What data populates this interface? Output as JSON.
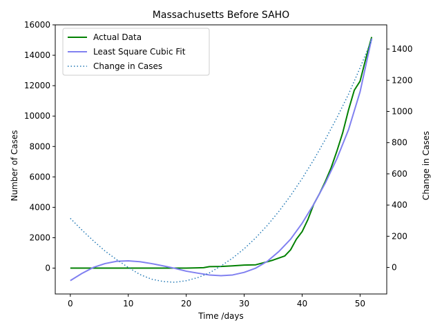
{
  "chart_data": {
    "type": "line",
    "title": "Massachusetts Before SAHO",
    "xlabel": "Time /days",
    "ylabel": "Number of Cases",
    "y2label": "Change in Cases",
    "xlim": [
      -2.6,
      54.6
    ],
    "ylim": [
      -1700,
      16000
    ],
    "y2lim": [
      -170,
      1555
    ],
    "xticks": [
      0,
      10,
      20,
      30,
      40,
      50
    ],
    "yticks": [
      0,
      2000,
      4000,
      6000,
      8000,
      10000,
      12000,
      14000,
      16000
    ],
    "y2ticks": [
      0,
      200,
      400,
      600,
      800,
      1000,
      1200,
      1400
    ],
    "grid": false,
    "legend_position": "top-left",
    "series": [
      {
        "name": "Actual Data",
        "axis": "left",
        "color": "#008000",
        "style": "solid",
        "x": [
          0,
          5,
          10,
          15,
          20,
          22,
          23,
          24,
          26,
          28,
          30,
          32,
          34,
          35,
          37,
          38,
          39,
          40,
          41,
          42,
          43,
          44,
          45,
          46,
          47,
          48,
          49,
          50,
          51,
          52
        ],
        "y": [
          0,
          0,
          0,
          0,
          0,
          20,
          30,
          100,
          110,
          150,
          200,
          220,
          420,
          530,
          800,
          1200,
          1900,
          2400,
          3200,
          4200,
          4900,
          5700,
          6600,
          7700,
          8900,
          10400,
          11700,
          12300,
          13800,
          15200
        ]
      },
      {
        "name": "Least Square Cubic Fit",
        "axis": "left",
        "color": "#8080f0",
        "style": "solid",
        "x": [
          0,
          2,
          4,
          6,
          8,
          10,
          12,
          14,
          16,
          18,
          20,
          22,
          24,
          26,
          28,
          30,
          32,
          34,
          36,
          38,
          40,
          42,
          44,
          46,
          48,
          50,
          52
        ],
        "y": [
          -820,
          -350,
          50,
          300,
          450,
          480,
          420,
          300,
          150,
          -10,
          -200,
          -330,
          -450,
          -500,
          -450,
          -280,
          0,
          450,
          1100,
          1900,
          2950,
          4200,
          5600,
          7200,
          9100,
          11600,
          15100
        ]
      },
      {
        "name": "Change in Cases",
        "axis": "right",
        "color": "#1f77b4",
        "style": "dotted",
        "x": [
          0,
          2,
          4,
          6,
          8,
          10,
          12,
          14,
          16,
          18,
          20,
          22,
          24,
          26,
          28,
          30,
          32,
          34,
          36,
          38,
          40,
          42,
          44,
          46,
          48,
          50,
          52
        ],
        "y": [
          315,
          240,
          170,
          105,
          50,
          0,
          -45,
          -75,
          -90,
          -95,
          -85,
          -65,
          -35,
          10,
          60,
          120,
          190,
          270,
          360,
          460,
          570,
          690,
          820,
          960,
          1110,
          1280,
          1460
        ]
      }
    ]
  }
}
